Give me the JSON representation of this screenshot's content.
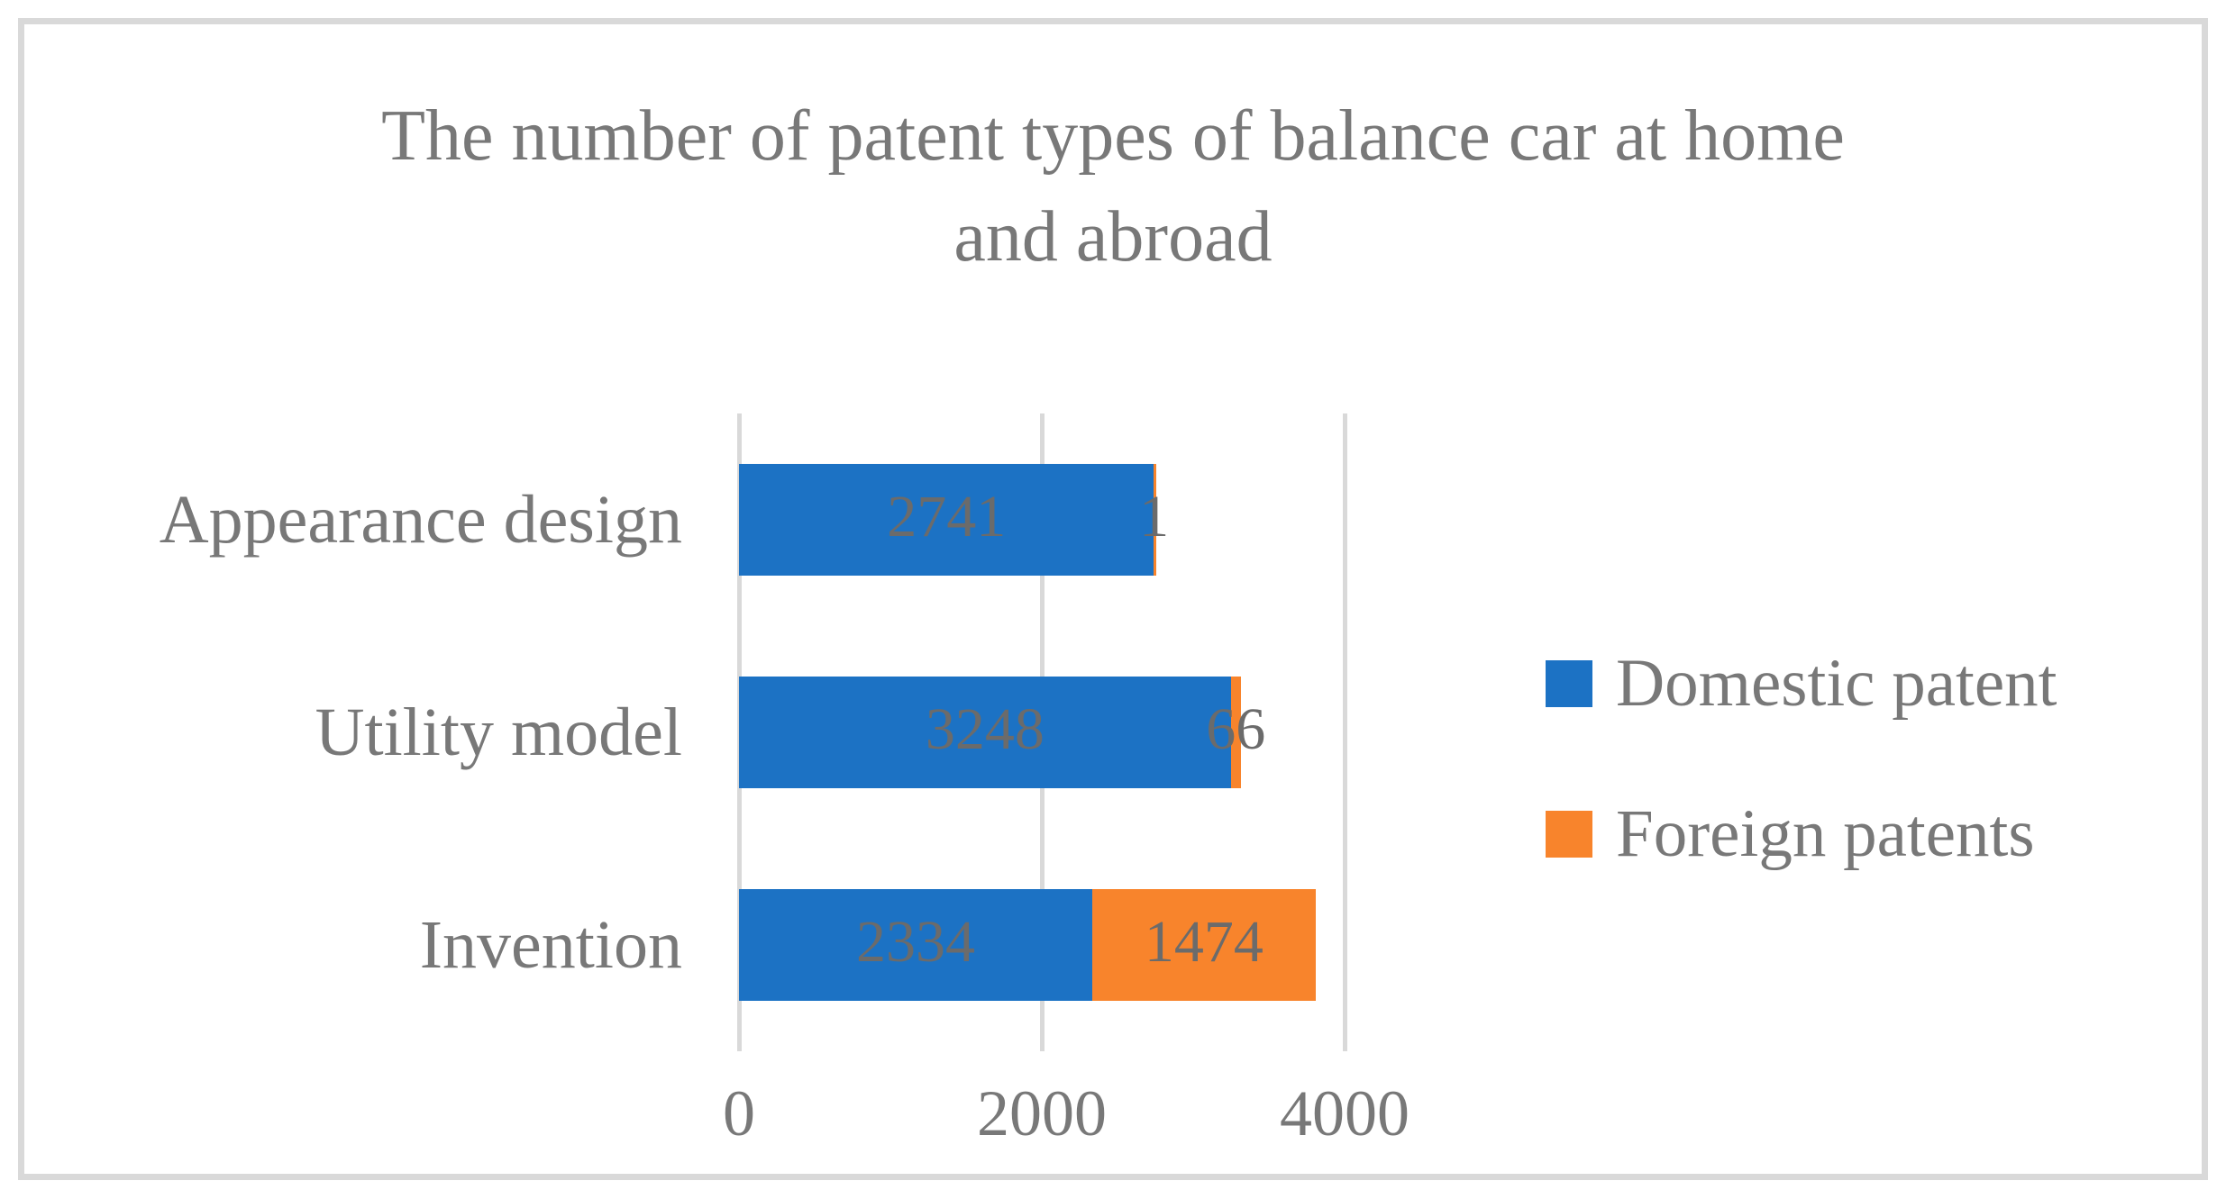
{
  "chart_data": {
    "type": "bar",
    "orientation": "horizontal",
    "stacked": true,
    "title": "The number of patent types of balance car at home and abroad",
    "title_lines": [
      "The number of patent types of balance car at home",
      "and abroad"
    ],
    "categories": [
      "Appearance design",
      "Utility model",
      "Invention"
    ],
    "series": [
      {
        "name": "Domestic patent",
        "color": "#1c72c4",
        "values": [
          2741,
          3248,
          2334
        ]
      },
      {
        "name": "Foreign patents",
        "color": "#f8842c",
        "values": [
          1,
          66,
          1474
        ]
      }
    ],
    "data_labels_shown": true,
    "xlabel": "",
    "ylabel": "",
    "xlim": [
      0,
      4000
    ],
    "x_ticks": [
      0,
      2000,
      4000
    ],
    "x_tick_labels": [
      "0",
      "2000",
      "4000"
    ],
    "grid": true,
    "legend_position": "right"
  },
  "colors": {
    "background": "#ffffff",
    "border": "#d9d9d9",
    "gridline": "#d9d9d9",
    "title_text": "#787878",
    "axis_text": "#787878",
    "data_label_text": "#6b6b6b"
  }
}
